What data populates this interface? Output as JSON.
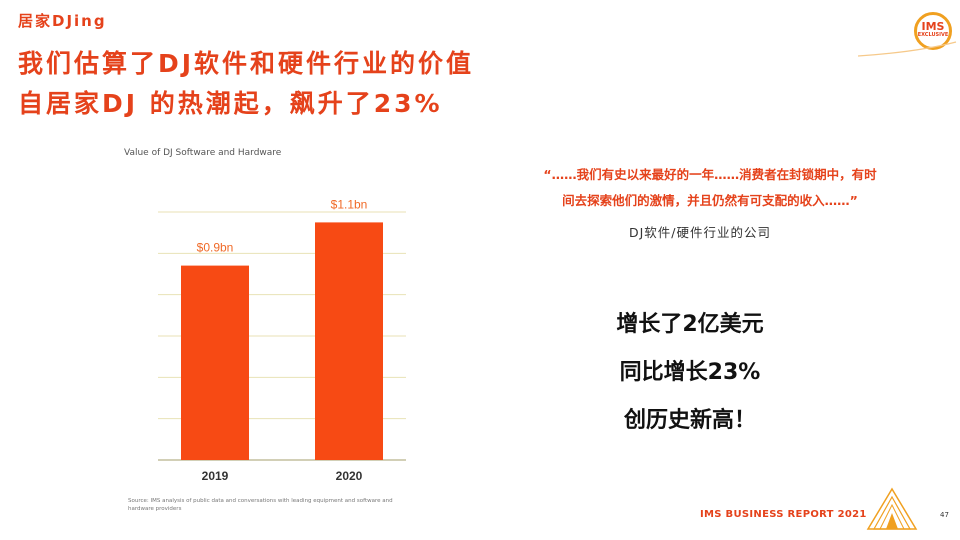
{
  "header": {
    "section_tag": "居家DJing",
    "headline_line1": "我们估算了DJ软件和硬件行业的价值",
    "headline_line2": "自居家DJ 的热潮起，飙升了23%"
  },
  "logo": {
    "line1": "IMS",
    "line2": "EXCLUSIVE"
  },
  "chart_data": {
    "type": "bar",
    "title": "Value of DJ Software and Hardware",
    "categories": [
      "2019",
      "2020"
    ],
    "values": [
      0.9,
      1.1
    ],
    "value_labels": [
      "$0.9bn",
      "$1.1bn"
    ],
    "unit": "$bn",
    "ylim": [
      0,
      1.25
    ],
    "grid": true,
    "colors": {
      "bar": "#f74a14",
      "grid": "#e8e2b6",
      "axis": "#b8b28a"
    },
    "source": "Source: IMS analysis of public data and conversations with leading equipment and software and hardware providers"
  },
  "quote": {
    "line1": "“……我们有史以来最好的一年……消费者在封锁期中，有时",
    "line2": "间去探索他们的激情，并且仍然有可支配的收入……”",
    "attribution": "DJ软件/硬件行业的公司"
  },
  "stats": [
    "增长了2亿美元",
    "同比增长23%",
    "创历史新高！"
  ],
  "footer": {
    "report_title": "IMS BUSINESS REPORT 2021",
    "page_number": "47"
  },
  "colors": {
    "accent": "#e5421b",
    "gold": "#f0a020"
  }
}
